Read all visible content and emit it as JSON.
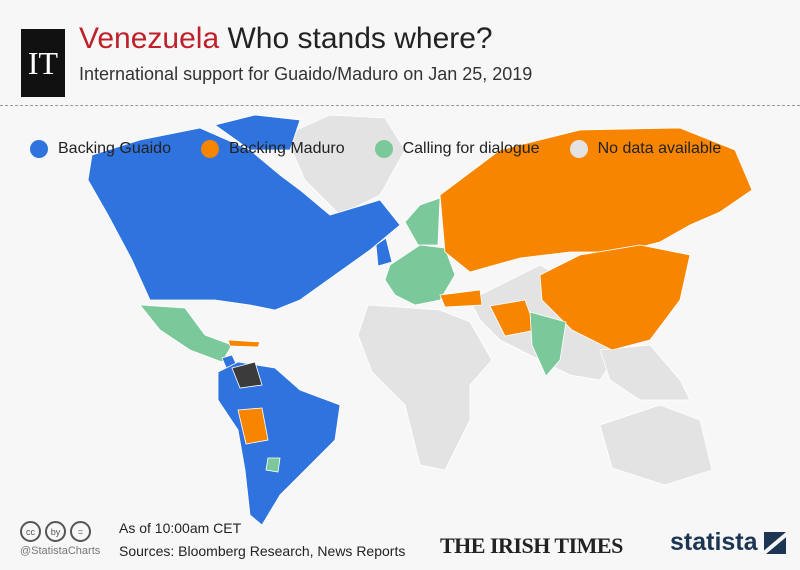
{
  "header": {
    "logo": "IT",
    "title_highlight": "Venezuela",
    "title_rest": "Who stands where?",
    "subtitle": "International support for Guaido/Maduro on Jan 25, 2019"
  },
  "legend": [
    {
      "label": "Backing Guaido",
      "color": "#2f74de"
    },
    {
      "label": "Backing Maduro",
      "color": "#f78500"
    },
    {
      "label": "Calling for dialogue",
      "color": "#7bc99a"
    },
    {
      "label": "No data available",
      "color": "#e3e3e3"
    }
  ],
  "footer": {
    "cc_icons": [
      "cc",
      "by",
      "="
    ],
    "handle": "@StatistaCharts",
    "as_of": "As of 10:00am CET",
    "sources": "Sources: Bloomberg Research, News Reports",
    "irish_times": "THE IRISH TIMES",
    "statista": "statista"
  }
}
